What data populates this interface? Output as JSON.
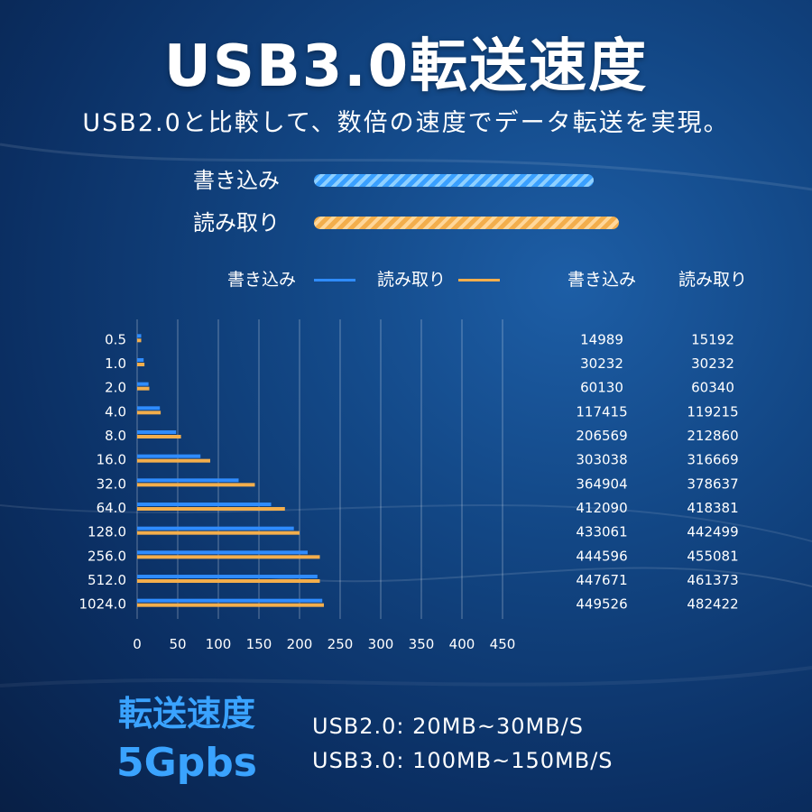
{
  "title": "USB3.0転送速度",
  "subtitle": "USB2.0と比較して、数倍の速度でデータ転送を実現。",
  "legend_top": {
    "write_label": "書き込み",
    "read_label": "読み取り"
  },
  "colors": {
    "write": "#2f8cff",
    "read": "#f3ae4c"
  },
  "chart_data": {
    "type": "bar",
    "orientation": "horizontal",
    "categories": [
      "0.5",
      "1.0",
      "2.0",
      "4.0",
      "8.0",
      "16.0",
      "32.0",
      "64.0",
      "128.0",
      "256.0",
      "512.0",
      "1024.0"
    ],
    "series": [
      {
        "name": "書き込み",
        "values": [
          5,
          8,
          14,
          28,
          48,
          78,
          125,
          165,
          193,
          210,
          222,
          228
        ]
      },
      {
        "name": "読み取り",
        "values": [
          5,
          9,
          15,
          29,
          54,
          90,
          145,
          182,
          200,
          225,
          225,
          230
        ]
      }
    ],
    "xticks": [
      "0",
      "50",
      "100",
      "150",
      "200",
      "250",
      "300",
      "350",
      "400",
      "450"
    ],
    "xlim": [
      0,
      450
    ],
    "grid": true,
    "legend": "top",
    "table": {
      "headers": [
        "書き込み",
        "読み取り"
      ],
      "write": [
        "14989",
        "30232",
        "60130",
        "117415",
        "206569",
        "303038",
        "364904",
        "412090",
        "433061",
        "444596",
        "447671",
        "449526"
      ],
      "read": [
        "15192",
        "30232",
        "60340",
        "119215",
        "212860",
        "316669",
        "378637",
        "418381",
        "442499",
        "455081",
        "461373",
        "482422"
      ]
    }
  },
  "bottom": {
    "label": "転送速度",
    "speed": "5Gpbs",
    "usb2": "USB2.0: 20MB~30MB/S",
    "usb3": "USB3.0: 100MB~150MB/S"
  }
}
